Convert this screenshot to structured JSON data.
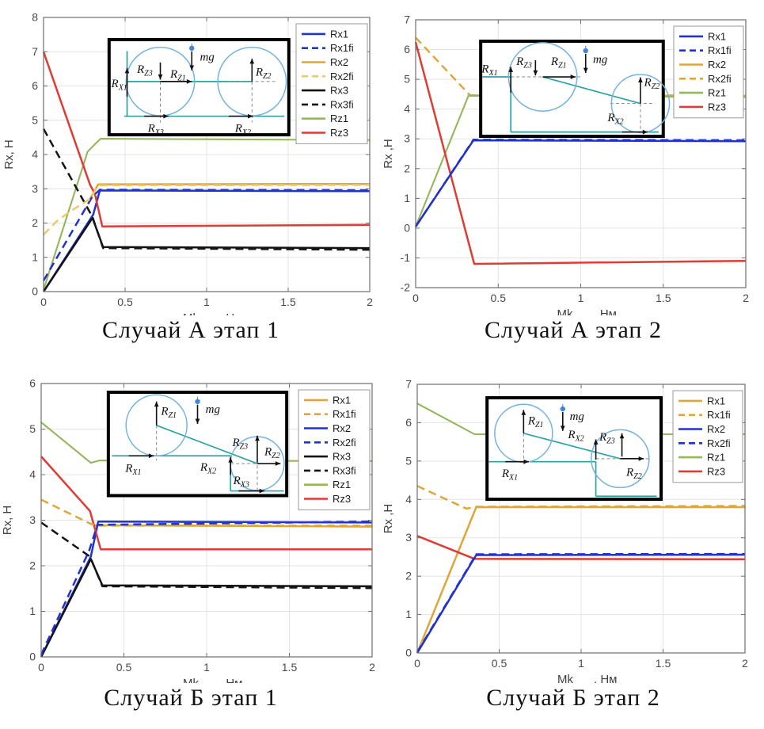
{
  "page": {
    "background": "#ffffff"
  },
  "palette": {
    "blue": "#2232cc",
    "gold": "#dfa63b",
    "gold_light": "#e9cb6e",
    "black": "#141414",
    "green": "#93b75a",
    "red": "#de3c34",
    "teal": "#2aa3a8",
    "circle_blue": "#74b3e0",
    "grid": "#e4e4e4",
    "axis": "#6f6f6f",
    "tick_text": "#4a4a4a",
    "label_text": "#3f3f3f",
    "legend_border": "#9a9a9a",
    "mg_pin": "#3f87d6"
  },
  "chart_data": [
    {
      "type": "line",
      "title": "Случай А этап 1",
      "xlabel_parts": [
        "Mk",
        ", Нм"
      ],
      "ylabel": "Rx, Н",
      "xlim": [
        0,
        2
      ],
      "ylim": [
        0,
        8
      ],
      "xticks": [
        0,
        0.5,
        1,
        1.5,
        2
      ],
      "xtick_labels": [
        "0",
        "0.5",
        "1",
        "1.5",
        "2"
      ],
      "yticks": [
        0,
        1,
        2,
        3,
        4,
        5,
        6,
        7,
        8
      ],
      "ytick_labels": [
        "0",
        "1",
        "2",
        "3",
        "4",
        "5",
        "6",
        "7",
        "8"
      ],
      "grid": true,
      "legend_position": "top-right",
      "series": [
        {
          "name": "Rx1",
          "color": "blue",
          "dash": false,
          "points": [
            [
              0,
              0
            ],
            [
              0.305,
              2.25
            ],
            [
              0.345,
              2.95
            ],
            [
              2,
              2.93
            ]
          ]
        },
        {
          "name": "Rx2",
          "color": "gold",
          "dash": false,
          "points": [
            [
              0.285,
              2.7
            ],
            [
              0.335,
              3.13
            ],
            [
              2,
              3.14
            ]
          ]
        },
        {
          "name": "Rz1",
          "color": "green",
          "dash": false,
          "points": [
            [
              0,
              0.05
            ],
            [
              0.27,
              4.08
            ],
            [
              0.29,
              4.18
            ],
            [
              0.315,
              4.3
            ],
            [
              0.35,
              4.46
            ],
            [
              2,
              4.42
            ]
          ]
        },
        {
          "name": "Rz3",
          "color": "red",
          "dash": false,
          "points": [
            [
              0,
              7.0
            ],
            [
              0.285,
              3.12
            ],
            [
              0.315,
              2.85
            ],
            [
              0.36,
              1.9
            ],
            [
              2,
              1.95
            ]
          ]
        },
        {
          "name": "Rx3",
          "color": "black",
          "dash": false,
          "points": [
            [
              0,
              0
            ],
            [
              0.3,
              2.15
            ],
            [
              0.365,
              1.3
            ],
            [
              2,
              1.27
            ]
          ]
        },
        {
          "name": "Rx3fi",
          "color": "black",
          "dash": true,
          "points": [
            [
              0,
              4.75
            ],
            [
              0.3,
              2.18
            ],
            [
              0.365,
              1.27
            ],
            [
              2,
              1.22
            ]
          ]
        },
        {
          "name": "Rx1fi",
          "color": "blue",
          "dash": true,
          "points": [
            [
              0,
              0.32
            ],
            [
              0.3,
              2.78
            ],
            [
              0.345,
              2.97
            ],
            [
              2,
              2.96
            ]
          ]
        },
        {
          "name": "Rx2fi",
          "color": "gold_light",
          "dash": true,
          "points": [
            [
              0,
              1.66
            ],
            [
              0.08,
              2.05
            ],
            [
              0.17,
              2.36
            ],
            [
              0.285,
              2.7
            ],
            [
              0.335,
              3.1
            ],
            [
              2,
              3.11
            ]
          ]
        }
      ],
      "legend": [
        {
          "label": "Rx1",
          "color": "blue",
          "dash": false
        },
        {
          "label": "Rx1fi",
          "color": "blue",
          "dash": true
        },
        {
          "label": "Rx2",
          "color": "gold",
          "dash": false
        },
        {
          "label": "Rx2fi",
          "color": "gold_light",
          "dash": true
        },
        {
          "label": "Rx3",
          "color": "black",
          "dash": false
        },
        {
          "label": "Rx3fi",
          "color": "black",
          "dash": true
        },
        {
          "label": "Rz1",
          "color": "green",
          "dash": false
        },
        {
          "label": "Rz3",
          "color": "red",
          "dash": false
        }
      ],
      "inset": {
        "type": "A1",
        "labels": [
          {
            "t": "R",
            "s": "X1"
          },
          {
            "t": "R",
            "s": "Z3"
          },
          {
            "t": "R",
            "s": "Z1"
          },
          {
            "t": "mg",
            "s": ""
          },
          {
            "t": "R",
            "s": "Z2"
          },
          {
            "t": "R",
            "s": "X3"
          },
          {
            "t": "R",
            "s": "X2"
          }
        ]
      }
    },
    {
      "type": "line",
      "title": "Случай А этап 2",
      "xlabel_parts": [
        "Mk",
        ", Нм"
      ],
      "ylabel": "Rx ,Н",
      "xlim": [
        0,
        2
      ],
      "ylim": [
        -2,
        7
      ],
      "xticks": [
        0,
        0.5,
        1,
        1.5,
        2
      ],
      "xtick_labels": [
        "0",
        "0.5",
        "1",
        "1.5",
        "2"
      ],
      "yticks": [
        -2,
        -1,
        0,
        1,
        2,
        3,
        4,
        5,
        6,
        7
      ],
      "ytick_labels": [
        "-2",
        "-1",
        "0",
        "1",
        "2",
        "3",
        "4",
        "5",
        "6",
        "7"
      ],
      "grid": true,
      "legend_position": "top-right",
      "series": [
        {
          "name": "Rx2fi",
          "color": "gold",
          "dash": true,
          "points": [
            [
              0,
              6.4
            ],
            [
              0.33,
              4.46
            ],
            [
              2,
              4.46
            ]
          ]
        },
        {
          "name": "Rx2",
          "color": "gold",
          "dash": false,
          "points": [
            [
              0.33,
              4.46
            ],
            [
              2,
              4.45
            ]
          ]
        },
        {
          "name": "Rz1",
          "color": "green",
          "dash": false,
          "points": [
            [
              0,
              0.05
            ],
            [
              0.32,
              4.45
            ],
            [
              2,
              4.4
            ]
          ]
        },
        {
          "name": "Rz3",
          "color": "red",
          "dash": false,
          "points": [
            [
              0,
              6.25
            ],
            [
              0.355,
              -1.2
            ],
            [
              2,
              -1.1
            ]
          ]
        },
        {
          "name": "Rx1",
          "color": "blue",
          "dash": false,
          "points": [
            [
              0,
              0.05
            ],
            [
              0.35,
              2.95
            ],
            [
              2,
              2.92
            ]
          ]
        },
        {
          "name": "Rx1fi",
          "color": "blue",
          "dash": true,
          "points": [
            [
              0,
              0.05
            ],
            [
              0.35,
              2.97
            ],
            [
              2,
              2.95
            ]
          ]
        }
      ],
      "legend": [
        {
          "label": "Rx1",
          "color": "blue",
          "dash": false
        },
        {
          "label": "Rx1fi",
          "color": "blue",
          "dash": true
        },
        {
          "label": "Rx2",
          "color": "gold",
          "dash": false
        },
        {
          "label": "Rx2fi",
          "color": "gold",
          "dash": true
        },
        {
          "label": "Rz1",
          "color": "green",
          "dash": false
        },
        {
          "label": "Rz3",
          "color": "red",
          "dash": false
        }
      ],
      "inset": {
        "type": "A2",
        "labels": [
          {
            "t": "R",
            "s": "X1"
          },
          {
            "t": "R",
            "s": "Z3"
          },
          {
            "t": "R",
            "s": "Z1"
          },
          {
            "t": "mg",
            "s": ""
          },
          {
            "t": "R",
            "s": "Z2"
          },
          {
            "t": "R",
            "s": "X2"
          }
        ]
      }
    },
    {
      "type": "line",
      "title": "Случай Б этап 1",
      "xlabel_parts": [
        "Mk",
        ", Нм"
      ],
      "ylabel": "Rx, Н",
      "xlim": [
        0,
        2
      ],
      "ylim": [
        0,
        6
      ],
      "xticks": [
        0,
        0.5,
        1,
        1.5,
        2
      ],
      "xtick_labels": [
        "0",
        "0.5",
        "1",
        "1.5",
        "2"
      ],
      "yticks": [
        0,
        1,
        2,
        3,
        4,
        5,
        6
      ],
      "ytick_labels": [
        "0",
        "1",
        "2",
        "3",
        "4",
        "5",
        "6"
      ],
      "grid": true,
      "legend_position": "top-right",
      "series": [
        {
          "name": "Rx2",
          "color": "blue",
          "dash": false,
          "points": [
            [
              0,
              0
            ],
            [
              0.3,
              2.2
            ],
            [
              0.345,
              2.97
            ],
            [
              2,
              2.95
            ]
          ]
        },
        {
          "name": "Rx1",
          "color": "gold",
          "dash": false,
          "points": [
            [
              0.32,
              2.89
            ],
            [
              2,
              2.86
            ]
          ]
        },
        {
          "name": "Rz1",
          "color": "green",
          "dash": false,
          "points": [
            [
              0,
              5.15
            ],
            [
              0.3,
              4.26
            ],
            [
              0.35,
              4.31
            ],
            [
              2,
              4.3
            ]
          ]
        },
        {
          "name": "Rz3",
          "color": "red",
          "dash": false,
          "points": [
            [
              0,
              4.4
            ],
            [
              0.295,
              3.2
            ],
            [
              0.36,
              2.36
            ],
            [
              2,
              2.36
            ]
          ]
        },
        {
          "name": "Rx3",
          "color": "black",
          "dash": false,
          "points": [
            [
              0,
              0
            ],
            [
              0.3,
              2.15
            ],
            [
              0.37,
              1.57
            ],
            [
              2,
              1.55
            ]
          ]
        },
        {
          "name": "Rx3fi",
          "color": "black",
          "dash": true,
          "points": [
            [
              0,
              2.95
            ],
            [
              0.295,
              2.2
            ],
            [
              0.37,
              1.55
            ],
            [
              2,
              1.51
            ]
          ]
        },
        {
          "name": "Rx1fi",
          "color": "gold",
          "dash": true,
          "points": [
            [
              0,
              3.45
            ],
            [
              0.3,
              2.92
            ],
            [
              0.35,
              2.88
            ],
            [
              2,
              2.88
            ]
          ]
        },
        {
          "name": "Rx2fi",
          "color": "blue",
          "dash": true,
          "points": [
            [
              0,
              0.05
            ],
            [
              0.29,
              2.33
            ],
            [
              0.34,
              2.9
            ],
            [
              2,
              2.97
            ]
          ]
        }
      ],
      "legend": [
        {
          "label": "Rx1",
          "color": "gold",
          "dash": false
        },
        {
          "label": "Rx1fi",
          "color": "gold",
          "dash": true
        },
        {
          "label": "Rx2",
          "color": "blue",
          "dash": false
        },
        {
          "label": "Rx2fi",
          "color": "blue",
          "dash": true
        },
        {
          "label": "Rx3",
          "color": "black",
          "dash": false
        },
        {
          "label": "Rx3fi",
          "color": "black",
          "dash": true
        },
        {
          "label": "Rz1",
          "color": "green",
          "dash": false
        },
        {
          "label": "Rz3",
          "color": "red",
          "dash": false
        }
      ],
      "inset": {
        "type": "B1",
        "labels": [
          {
            "t": "R",
            "s": "Z1"
          },
          {
            "t": "mg",
            "s": ""
          },
          {
            "t": "R",
            "s": "X1"
          },
          {
            "t": "R",
            "s": "X2"
          },
          {
            "t": "R",
            "s": "Z3"
          },
          {
            "t": "R",
            "s": "Z2"
          },
          {
            "t": "R",
            "s": "X3"
          }
        ]
      }
    },
    {
      "type": "line",
      "title": "Случай Б этап 2",
      "xlabel_parts": [
        "Mk",
        ", Нм"
      ],
      "ylabel": "Rx ,Н",
      "xlim": [
        0,
        2
      ],
      "ylim": [
        0,
        7
      ],
      "xticks": [
        0,
        0.5,
        1,
        1.5,
        2
      ],
      "xtick_labels": [
        "0",
        "0.5",
        "1",
        "1.5",
        "2"
      ],
      "yticks": [
        0,
        1,
        2,
        3,
        4,
        5,
        6,
        7
      ],
      "ytick_labels": [
        "0",
        "1",
        "2",
        "3",
        "4",
        "5",
        "6",
        "7"
      ],
      "grid": true,
      "legend_position": "top-right",
      "series": [
        {
          "name": "Rx1",
          "color": "gold",
          "dash": false,
          "points": [
            [
              0,
              0
            ],
            [
              0.36,
              3.8
            ],
            [
              2,
              3.8
            ]
          ]
        },
        {
          "name": "Rx1fi",
          "color": "gold",
          "dash": true,
          "points": [
            [
              0,
              4.35
            ],
            [
              0.3,
              3.76
            ],
            [
              0.36,
              3.81
            ],
            [
              2,
              3.83
            ]
          ]
        },
        {
          "name": "Rz1",
          "color": "green",
          "dash": false,
          "points": [
            [
              0,
              6.5
            ],
            [
              0.35,
              5.7
            ],
            [
              2,
              5.7
            ]
          ]
        },
        {
          "name": "Rz3",
          "color": "red",
          "dash": false,
          "points": [
            [
              0,
              3.05
            ],
            [
              0.35,
              2.45
            ],
            [
              2,
              2.44
            ]
          ]
        },
        {
          "name": "Rx2",
          "color": "blue",
          "dash": false,
          "points": [
            [
              0,
              0
            ],
            [
              0.36,
              2.55
            ],
            [
              2,
              2.56
            ]
          ]
        },
        {
          "name": "Rx2fi",
          "color": "blue",
          "dash": true,
          "points": [
            [
              0,
              0.02
            ],
            [
              0.36,
              2.57
            ],
            [
              2,
              2.58
            ]
          ]
        }
      ],
      "legend": [
        {
          "label": "Rx1",
          "color": "gold",
          "dash": false
        },
        {
          "label": "Rx1fi",
          "color": "gold",
          "dash": true
        },
        {
          "label": "Rx2",
          "color": "blue",
          "dash": false
        },
        {
          "label": "Rx2fi",
          "color": "blue",
          "dash": true
        },
        {
          "label": "Rz1",
          "color": "green",
          "dash": false
        },
        {
          "label": "Rz3",
          "color": "red",
          "dash": false
        }
      ],
      "inset": {
        "type": "B2",
        "labels": [
          {
            "t": "R",
            "s": "Z1"
          },
          {
            "t": "mg",
            "s": ""
          },
          {
            "t": "R",
            "s": "X1"
          },
          {
            "t": "R",
            "s": "X2"
          },
          {
            "t": "R",
            "s": "Z3"
          },
          {
            "t": "R",
            "s": "Z2"
          }
        ]
      }
    }
  ]
}
